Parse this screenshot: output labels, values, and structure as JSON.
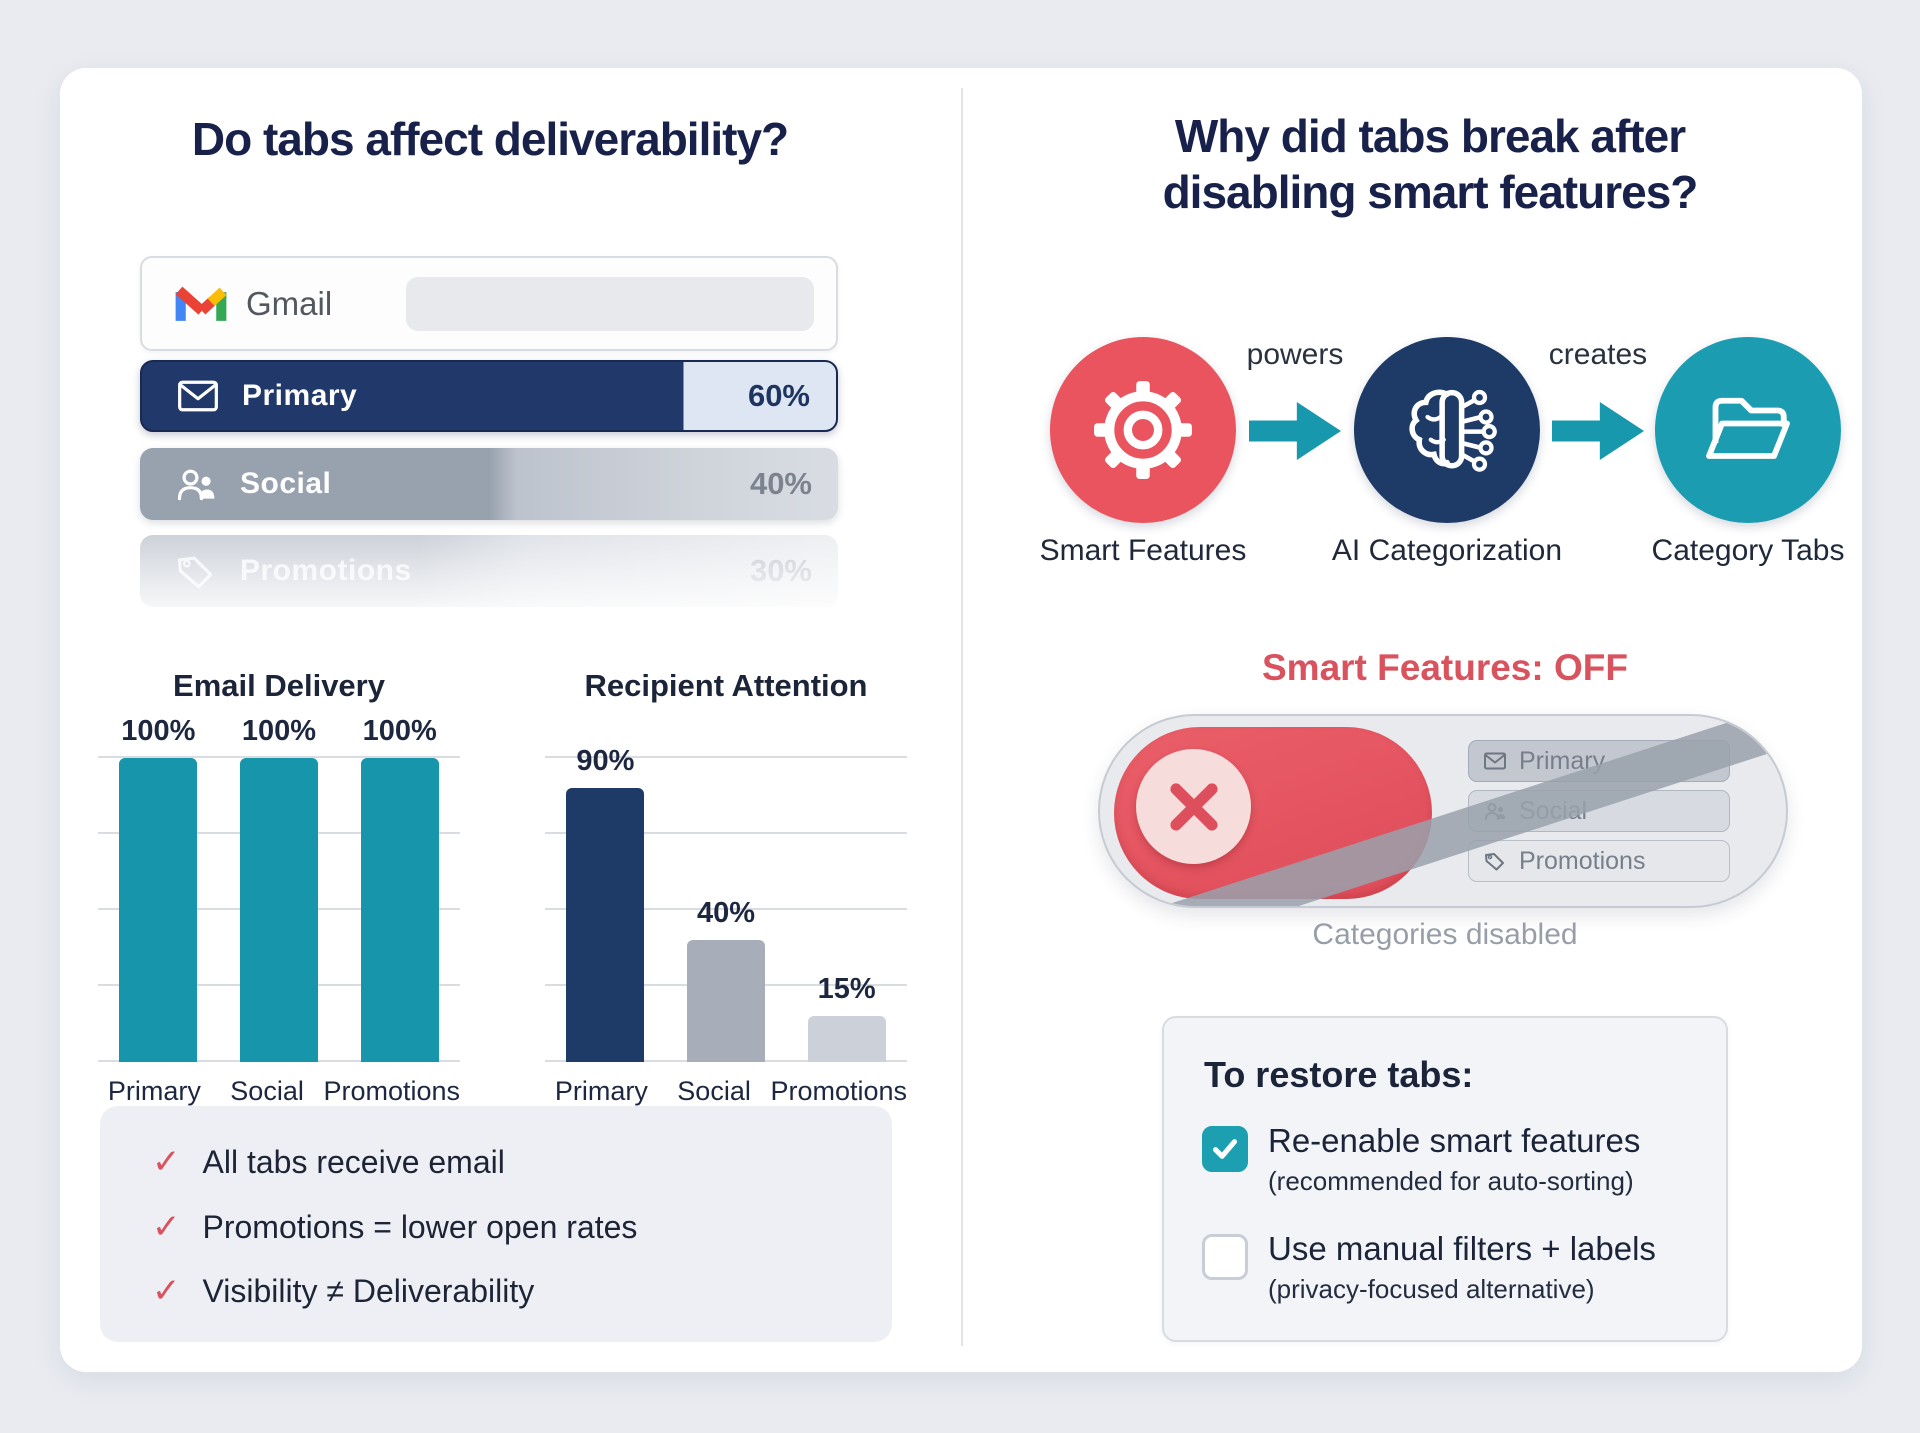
{
  "left": {
    "title": "Do tabs affect deliverability?",
    "gmail": {
      "app_name": "Gmail"
    },
    "tabs": [
      {
        "label": "Primary",
        "value": "60%",
        "icon": "envelope-icon"
      },
      {
        "label": "Social",
        "value": "40%",
        "icon": "people-icon"
      },
      {
        "label": "Promotions",
        "value": "30%",
        "icon": "tag-icon"
      }
    ],
    "checklist": [
      "All tabs receive email",
      "Promotions = lower open rates",
      "Visibility ≠ Deliverability"
    ]
  },
  "chart_data": [
    {
      "type": "bar",
      "title": "Email Delivery",
      "categories": [
        "Primary",
        "Social",
        "Promotions"
      ],
      "values": [
        100,
        100,
        100
      ],
      "value_labels": [
        "100%",
        "100%",
        "100%"
      ],
      "xlabel": "",
      "ylabel": "",
      "ylim": [
        0,
        100
      ],
      "grid": true,
      "legend": "none",
      "bar_colors": [
        "#1795aa",
        "#1795aa",
        "#1795aa"
      ]
    },
    {
      "type": "bar",
      "title": "Recipient Attention",
      "categories": [
        "Primary",
        "Social",
        "Promotions"
      ],
      "values": [
        90,
        40,
        15
      ],
      "value_labels": [
        "90%",
        "40%",
        "15%"
      ],
      "xlabel": "",
      "ylabel": "",
      "ylim": [
        0,
        100
      ],
      "grid": true,
      "legend": "none",
      "bar_colors": [
        "#1e3a66",
        "#a7aeb9",
        "#ccd1d9"
      ]
    }
  ],
  "right": {
    "title_line1": "Why did tabs break after",
    "title_line2": "disabling smart features?",
    "flow": {
      "nodes": [
        {
          "label": "Smart Features",
          "icon": "gear-icon",
          "color": "#e9545e"
        },
        {
          "label": "AI Categorization",
          "icon": "brain-icon",
          "color": "#1e3a66"
        },
        {
          "label": "Category Tabs",
          "icon": "folder-icon",
          "color": "#1b9cb0"
        }
      ],
      "connectors": [
        {
          "label": "powers"
        },
        {
          "label": "creates"
        }
      ]
    },
    "toggle": {
      "heading": "Smart Features: OFF",
      "state": "off",
      "chips": [
        {
          "label": "Primary",
          "icon": "envelope-icon"
        },
        {
          "label": "Social",
          "icon": "people-icon"
        },
        {
          "label": "Promotions",
          "icon": "tag-icon"
        }
      ],
      "caption": "Categories disabled"
    },
    "restore": {
      "heading": "To restore tabs:",
      "options": [
        {
          "label": "Re-enable smart features",
          "note": "(recommended for auto-sorting)",
          "checked": true
        },
        {
          "label": "Use manual filters + labels",
          "note": "(privacy-focused alternative)",
          "checked": false
        }
      ]
    }
  },
  "colors": {
    "navy": "#1e3a66",
    "teal": "#1898ad",
    "red": "#e4525e",
    "check_red": "#d9535e",
    "title_navy": "#18214a"
  }
}
